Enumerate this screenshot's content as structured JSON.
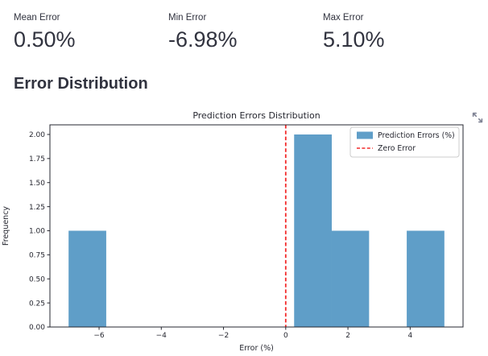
{
  "metrics": [
    {
      "label": "Mean Error",
      "value": "0.50%"
    },
    {
      "label": "Min Error",
      "value": "-6.98%"
    },
    {
      "label": "Max Error",
      "value": "5.10%"
    }
  ],
  "section": {
    "title": "Error Distribution"
  },
  "chart_toolbar": {
    "fullscreen_tooltip": "View fullscreen"
  },
  "colors": {
    "text": "#31333F",
    "axis": "#262730",
    "bar_fill": "#5f9ec8",
    "zero_line": "#f32b2b",
    "legend_border": "#cccccc",
    "icon": "#808495"
  },
  "chart_data": {
    "type": "bar",
    "subtype": "histogram",
    "title": "Prediction Errors Distribution",
    "xlabel": "Error (%)",
    "ylabel": "Frequency",
    "bin_edges": [
      -6.98,
      -5.77,
      -4.56,
      -3.36,
      -2.15,
      -0.94,
      0.27,
      1.48,
      2.68,
      3.89,
      5.1
    ],
    "counts": [
      1,
      0,
      0,
      0,
      0,
      0,
      2,
      1,
      0,
      1
    ],
    "xlim": [
      -7.58,
      5.7
    ],
    "ylim": [
      0,
      2.1
    ],
    "xticks": [
      -6,
      -4,
      -2,
      0,
      2,
      4
    ],
    "yticks": [
      0.0,
      0.25,
      0.5,
      0.75,
      1.0,
      1.25,
      1.5,
      1.75,
      2.0
    ],
    "zero_line_x": 0,
    "grid": false,
    "legend_position": "upper right",
    "legend": [
      {
        "label": "Prediction Errors (%)",
        "swatch": "patch"
      },
      {
        "label": "Zero Error",
        "swatch": "dashed-line"
      }
    ]
  }
}
